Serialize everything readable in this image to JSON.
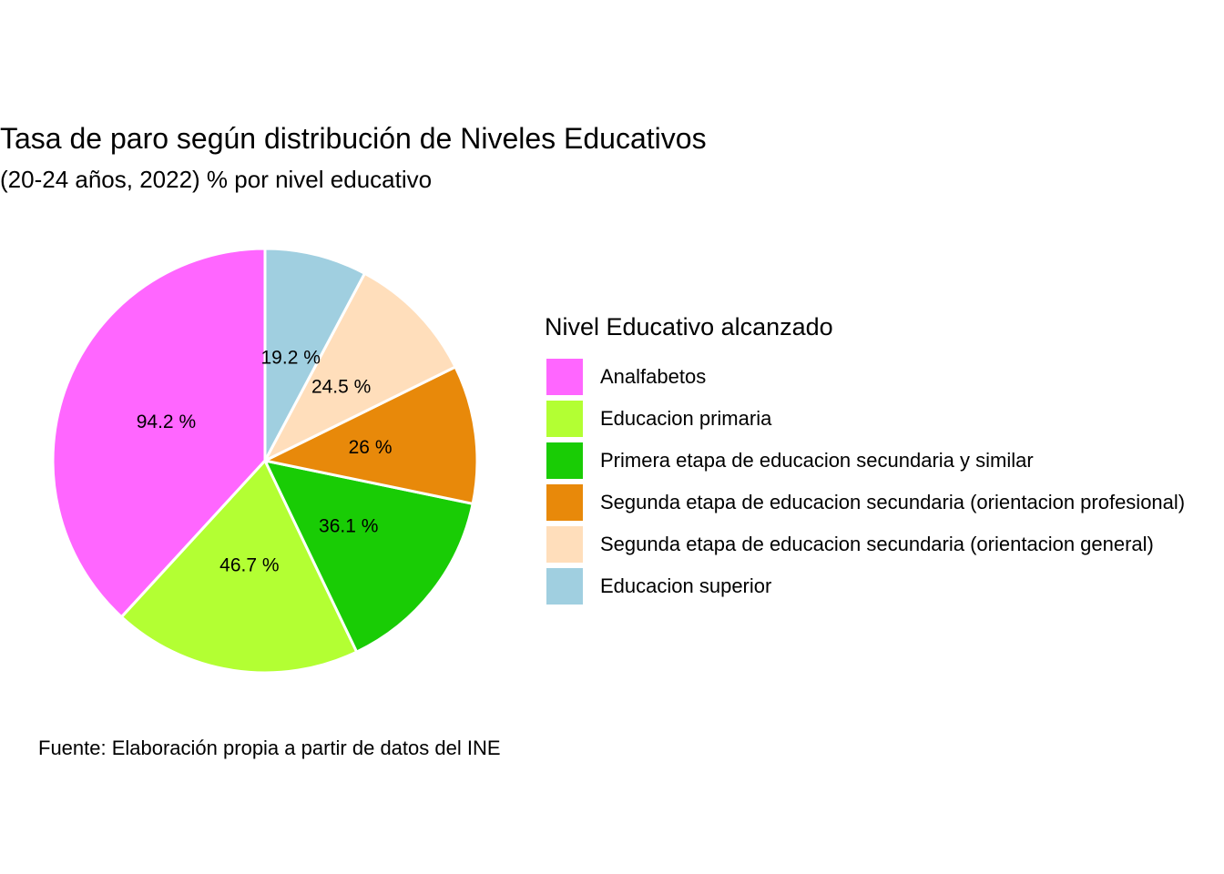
{
  "chart_data": {
    "type": "pie",
    "title": "Tasa de paro según distribución de Niveles Educativos",
    "subtitle": "(20-24 años, 2022) % por nivel educativo",
    "caption": "Fuente: Elaboración propia a partir de datos del INE",
    "legend_title": "Nivel Educativo alcanzado",
    "legend_position": "right",
    "slices": [
      {
        "label": "Analfabetos",
        "value": 94.2,
        "text": "94.2 %",
        "color": "#FF66FF"
      },
      {
        "label": "Educacion primaria",
        "value": 46.7,
        "text": "46.7 %",
        "color": "#B3FF33"
      },
      {
        "label": "Primera etapa de educacion secundaria y similar",
        "value": 36.1,
        "text": "36.1 %",
        "color": "#19CC05"
      },
      {
        "label": "Segunda etapa de educacion secundaria (orientacion profesional)",
        "value": 26,
        "text": "26 %",
        "color": "#E8890A"
      },
      {
        "label": "Segunda etapa de educacion secundaria (orientacion general)",
        "value": 24.5,
        "text": "24.5 %",
        "color": "#FFDEBB"
      },
      {
        "label": "Educacion superior",
        "value": 19.2,
        "text": "19.2 %",
        "color": "#A0CFE0"
      }
    ]
  }
}
